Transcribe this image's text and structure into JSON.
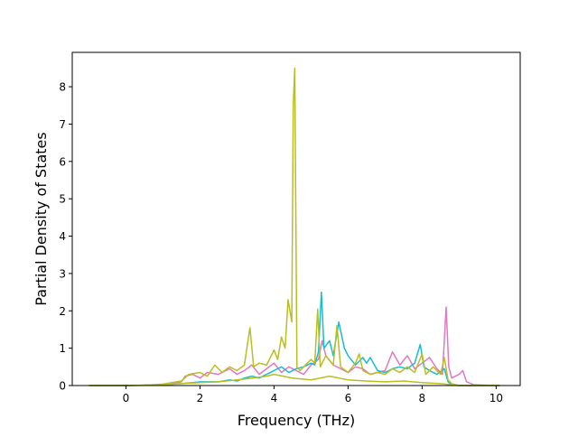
{
  "chart_data": {
    "type": "line",
    "title": "",
    "xlabel": "Frequency (THz)",
    "ylabel": "Partial Density of States",
    "xlim": [
      -1.45,
      10.65
    ],
    "ylim": [
      0,
      8.92
    ],
    "xticks": [
      "0",
      "2",
      "4",
      "6",
      "8",
      "10"
    ],
    "yticks": [
      "0",
      "1",
      "2",
      "3",
      "4",
      "5",
      "6",
      "7",
      "8"
    ],
    "grid": false,
    "legend": "none",
    "series": [
      {
        "color": "#e377c2",
        "points": [
          [
            -1.0,
            0
          ],
          [
            0.0,
            0
          ],
          [
            0.5,
            0.01
          ],
          [
            1.0,
            0.03
          ],
          [
            1.5,
            0.1
          ],
          [
            1.6,
            0.25
          ],
          [
            1.8,
            0.3
          ],
          [
            2.0,
            0.2
          ],
          [
            2.2,
            0.35
          ],
          [
            2.5,
            0.3
          ],
          [
            2.8,
            0.45
          ],
          [
            3.0,
            0.3
          ],
          [
            3.2,
            0.4
          ],
          [
            3.4,
            0.55
          ],
          [
            3.6,
            0.3
          ],
          [
            3.8,
            0.45
          ],
          [
            4.0,
            0.6
          ],
          [
            4.2,
            0.35
          ],
          [
            4.4,
            0.5
          ],
          [
            4.6,
            0.4
          ],
          [
            4.8,
            0.3
          ],
          [
            5.0,
            0.55
          ],
          [
            5.2,
            0.7
          ],
          [
            5.3,
            1.2
          ],
          [
            5.4,
            0.8
          ],
          [
            5.6,
            0.55
          ],
          [
            5.8,
            0.45
          ],
          [
            6.0,
            0.35
          ],
          [
            6.2,
            0.5
          ],
          [
            6.4,
            0.45
          ],
          [
            6.6,
            0.3
          ],
          [
            6.8,
            0.35
          ],
          [
            7.0,
            0.4
          ],
          [
            7.2,
            0.9
          ],
          [
            7.4,
            0.55
          ],
          [
            7.6,
            0.8
          ],
          [
            7.8,
            0.45
          ],
          [
            8.0,
            0.6
          ],
          [
            8.2,
            0.75
          ],
          [
            8.4,
            0.45
          ],
          [
            8.55,
            0.3
          ],
          [
            8.65,
            2.1
          ],
          [
            8.72,
            0.5
          ],
          [
            8.8,
            0.2
          ],
          [
            9.0,
            0.3
          ],
          [
            9.1,
            0.4
          ],
          [
            9.2,
            0.1
          ],
          [
            9.4,
            0.02
          ],
          [
            10.0,
            0.0
          ],
          [
            10.1,
            0
          ]
        ]
      },
      {
        "color": "#17becf",
        "points": [
          [
            -1.0,
            0
          ],
          [
            0.0,
            0
          ],
          [
            0.5,
            0.01
          ],
          [
            1.0,
            0.02
          ],
          [
            1.5,
            0.05
          ],
          [
            1.8,
            0.08
          ],
          [
            2.0,
            0.1
          ],
          [
            2.5,
            0.1
          ],
          [
            2.8,
            0.15
          ],
          [
            3.0,
            0.12
          ],
          [
            3.2,
            0.2
          ],
          [
            3.4,
            0.25
          ],
          [
            3.6,
            0.2
          ],
          [
            3.8,
            0.3
          ],
          [
            4.0,
            0.4
          ],
          [
            4.2,
            0.5
          ],
          [
            4.4,
            0.35
          ],
          [
            4.6,
            0.45
          ],
          [
            4.8,
            0.5
          ],
          [
            5.0,
            0.6
          ],
          [
            5.1,
            0.55
          ],
          [
            5.2,
            0.9
          ],
          [
            5.28,
            2.5
          ],
          [
            5.35,
            1.0
          ],
          [
            5.5,
            1.2
          ],
          [
            5.6,
            0.8
          ],
          [
            5.75,
            1.7
          ],
          [
            5.9,
            1.0
          ],
          [
            6.0,
            0.8
          ],
          [
            6.2,
            0.55
          ],
          [
            6.4,
            0.75
          ],
          [
            6.5,
            0.6
          ],
          [
            6.6,
            0.75
          ],
          [
            6.8,
            0.4
          ],
          [
            7.0,
            0.35
          ],
          [
            7.2,
            0.45
          ],
          [
            7.4,
            0.5
          ],
          [
            7.6,
            0.45
          ],
          [
            7.8,
            0.6
          ],
          [
            7.95,
            1.1
          ],
          [
            8.05,
            0.5
          ],
          [
            8.2,
            0.4
          ],
          [
            8.4,
            0.3
          ],
          [
            8.6,
            0.45
          ],
          [
            8.7,
            0.1
          ],
          [
            8.8,
            0.02
          ],
          [
            9.0,
            0
          ],
          [
            10.1,
            0
          ]
        ]
      },
      {
        "color": "#bcbd22",
        "points": [
          [
            -1.0,
            0
          ],
          [
            0.0,
            0
          ],
          [
            0.5,
            0.01
          ],
          [
            1.0,
            0.04
          ],
          [
            1.5,
            0.12
          ],
          [
            1.7,
            0.3
          ],
          [
            2.0,
            0.35
          ],
          [
            2.2,
            0.25
          ],
          [
            2.4,
            0.55
          ],
          [
            2.6,
            0.35
          ],
          [
            2.8,
            0.5
          ],
          [
            3.0,
            0.4
          ],
          [
            3.2,
            0.55
          ],
          [
            3.35,
            1.55
          ],
          [
            3.45,
            0.5
          ],
          [
            3.6,
            0.6
          ],
          [
            3.8,
            0.55
          ],
          [
            4.0,
            0.95
          ],
          [
            4.1,
            0.7
          ],
          [
            4.2,
            1.3
          ],
          [
            4.3,
            1.0
          ],
          [
            4.38,
            2.3
          ],
          [
            4.48,
            1.7
          ],
          [
            4.52,
            7.5
          ],
          [
            4.56,
            8.5
          ],
          [
            4.62,
            0.5
          ],
          [
            4.7,
            0.4
          ],
          [
            4.8,
            0.5
          ],
          [
            5.0,
            0.7
          ],
          [
            5.1,
            0.6
          ],
          [
            5.18,
            2.05
          ],
          [
            5.25,
            0.5
          ],
          [
            5.4,
            0.8
          ],
          [
            5.6,
            0.55
          ],
          [
            5.7,
            1.6
          ],
          [
            5.8,
            0.5
          ],
          [
            6.0,
            0.35
          ],
          [
            6.2,
            0.6
          ],
          [
            6.3,
            0.85
          ],
          [
            6.4,
            0.4
          ],
          [
            6.6,
            0.3
          ],
          [
            6.8,
            0.35
          ],
          [
            7.0,
            0.3
          ],
          [
            7.2,
            0.45
          ],
          [
            7.4,
            0.35
          ],
          [
            7.6,
            0.5
          ],
          [
            7.8,
            0.35
          ],
          [
            8.0,
            0.85
          ],
          [
            8.1,
            0.3
          ],
          [
            8.3,
            0.5
          ],
          [
            8.5,
            0.3
          ],
          [
            8.6,
            0.75
          ],
          [
            8.7,
            0.15
          ],
          [
            8.8,
            0.05
          ],
          [
            9.0,
            0
          ],
          [
            10.1,
            0
          ]
        ]
      },
      {
        "color": "#bcbd22",
        "points": [
          [
            -1.0,
            0
          ],
          [
            0.0,
            0
          ],
          [
            0.5,
            0.01
          ],
          [
            1.0,
            0.02
          ],
          [
            1.5,
            0.05
          ],
          [
            2.0,
            0.08
          ],
          [
            2.5,
            0.1
          ],
          [
            3.0,
            0.15
          ],
          [
            3.4,
            0.2
          ],
          [
            3.8,
            0.25
          ],
          [
            4.0,
            0.3
          ],
          [
            4.5,
            0.2
          ],
          [
            5.0,
            0.15
          ],
          [
            5.5,
            0.25
          ],
          [
            6.0,
            0.15
          ],
          [
            6.5,
            0.12
          ],
          [
            7.0,
            0.1
          ],
          [
            7.5,
            0.12
          ],
          [
            8.0,
            0.08
          ],
          [
            8.5,
            0.05
          ],
          [
            8.8,
            0.02
          ],
          [
            9.0,
            0
          ],
          [
            10.1,
            0
          ]
        ]
      }
    ]
  }
}
